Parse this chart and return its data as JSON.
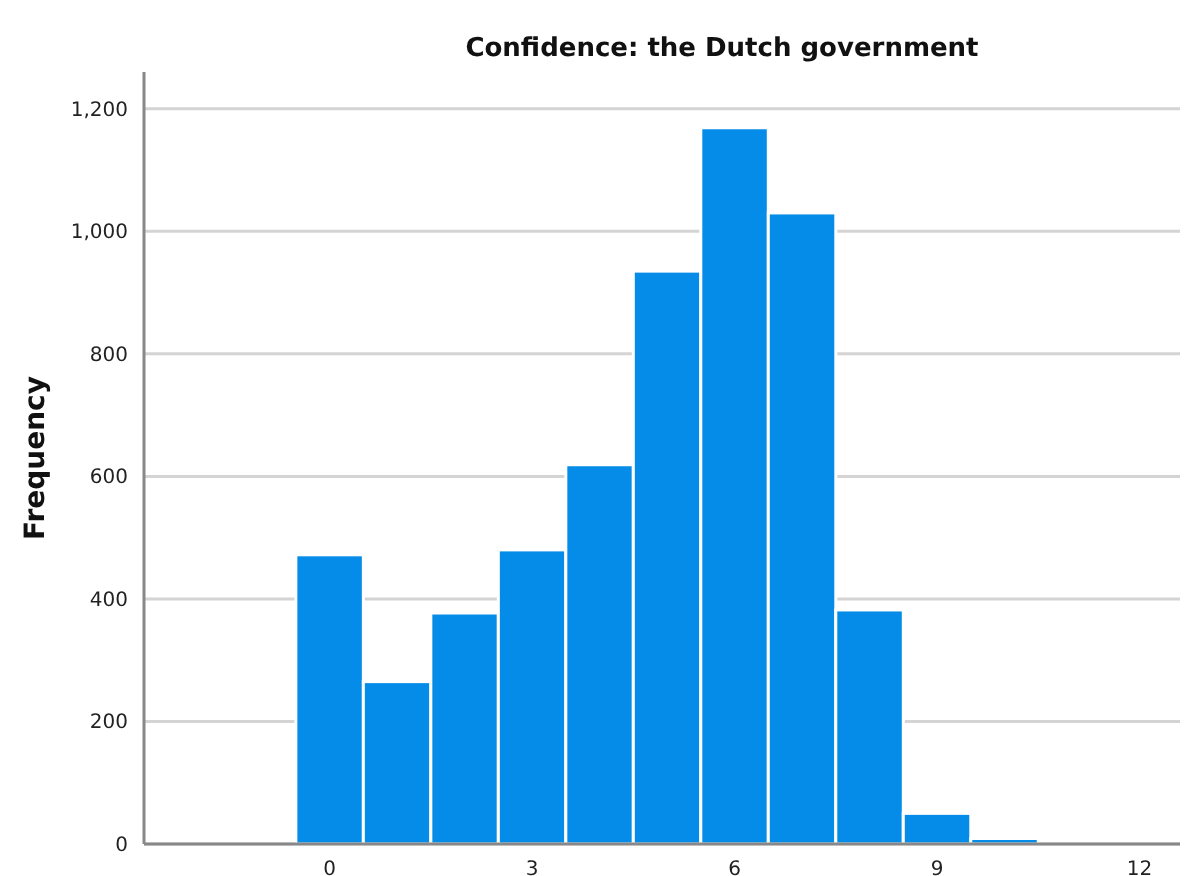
{
  "chart_data": {
    "type": "histogram",
    "title": "Confidence: the Dutch government",
    "ylabel": "Frequency",
    "bins": [
      -0.5,
      0.5,
      1.5,
      2.5,
      3.5,
      4.5,
      5.5,
      6.5,
      7.5,
      8.5,
      9.5,
      10.5
    ],
    "values": [
      472,
      265,
      377,
      480,
      619,
      935,
      1169,
      1030,
      382,
      50,
      9
    ],
    "color": "#058ce8",
    "xlim": [
      -2.75,
      12.6
    ],
    "xticks": [
      0,
      3,
      6,
      9,
      12
    ],
    "ylim": [
      0,
      1260
    ],
    "yticks": [
      {
        "value": 0,
        "label": "0"
      },
      {
        "value": 200,
        "label": "200"
      },
      {
        "value": 400,
        "label": "400"
      },
      {
        "value": 600,
        "label": "600"
      },
      {
        "value": 800,
        "label": "800"
      },
      {
        "value": 1000,
        "label": "1,000"
      },
      {
        "value": 1200,
        "label": "1,200"
      }
    ],
    "grid": "y"
  }
}
